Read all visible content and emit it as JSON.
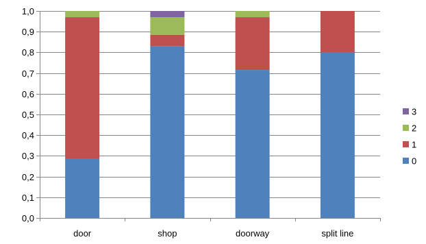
{
  "chart_data": {
    "type": "bar",
    "stacked": true,
    "categories": [
      "door",
      "shop",
      "doorway",
      "split line"
    ],
    "series": [
      {
        "name": "0",
        "color": "#4F81BD",
        "values": [
          0.285,
          0.83,
          0.715,
          0.8
        ]
      },
      {
        "name": "1",
        "color": "#C0504D",
        "values": [
          0.685,
          0.055,
          0.255,
          0.2
        ]
      },
      {
        "name": "2",
        "color": "#9BBB59",
        "values": [
          0.03,
          0.085,
          0.03,
          0.0
        ]
      },
      {
        "name": "3",
        "color": "#8064A2",
        "values": [
          0.0,
          0.03,
          0.0,
          0.0
        ]
      }
    ],
    "y_ticks": [
      "0,0",
      "0,1",
      "0,2",
      "0,3",
      "0,4",
      "0,5",
      "0,6",
      "0,7",
      "0,8",
      "0,9",
      "1,0"
    ],
    "ylim": [
      0,
      1
    ],
    "grid": true,
    "legend_position": "right",
    "legend_order": [
      "3",
      "2",
      "1",
      "0"
    ]
  }
}
